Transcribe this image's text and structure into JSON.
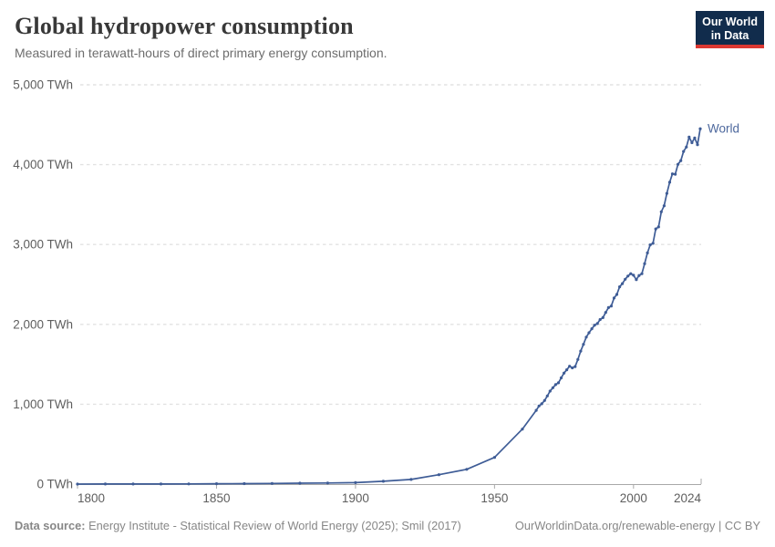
{
  "header": {
    "logo": {
      "line1": "Our World",
      "line2": "in Data",
      "bg": "#112c4c",
      "accent": "#dc3832"
    }
  },
  "chart_data": {
    "type": "line",
    "title": "Global hydropower consumption",
    "subtitle": "Measured in terawatt-hours of direct primary energy consumption.",
    "unit": "TWh",
    "xlabel": "",
    "ylabel": "TWh",
    "xlim": [
      1800,
      2024
    ],
    "ylim": [
      0,
      5000
    ],
    "grid": "horizontal-dashed",
    "legend_position": "end-of-line-label",
    "xticks": [
      {
        "value": 1800,
        "label": "1800"
      },
      {
        "value": 1850,
        "label": "1850"
      },
      {
        "value": 1900,
        "label": "1900"
      },
      {
        "value": 1950,
        "label": "1950"
      },
      {
        "value": 2000,
        "label": "2000"
      },
      {
        "value": 2024,
        "label": "2024"
      }
    ],
    "yticks": [
      {
        "value": 0,
        "label": "0 TWh"
      },
      {
        "value": 1000,
        "label": "1,000 TWh"
      },
      {
        "value": 2000,
        "label": "2,000 TWh"
      },
      {
        "value": 3000,
        "label": "3,000 TWh"
      },
      {
        "value": 4000,
        "label": "4,000 TWh"
      },
      {
        "value": 5000,
        "label": "5,000 TWh"
      }
    ],
    "series": [
      {
        "name": "World",
        "color": "#3e5c96",
        "label_color": "#4d689d",
        "points": [
          [
            1800,
            0.4
          ],
          [
            1810,
            0.7
          ],
          [
            1820,
            1.1
          ],
          [
            1830,
            1.7
          ],
          [
            1840,
            2.6
          ],
          [
            1850,
            4
          ],
          [
            1860,
            6
          ],
          [
            1870,
            8
          ],
          [
            1880,
            11
          ],
          [
            1890,
            14
          ],
          [
            1900,
            18
          ],
          [
            1910,
            35
          ],
          [
            1920,
            58
          ],
          [
            1930,
            118
          ],
          [
            1940,
            185
          ],
          [
            1950,
            334
          ],
          [
            1960,
            688
          ],
          [
            1965,
            923
          ],
          [
            1966,
            978
          ],
          [
            1967,
            1006
          ],
          [
            1968,
            1047
          ],
          [
            1969,
            1104
          ],
          [
            1970,
            1164
          ],
          [
            1971,
            1207
          ],
          [
            1972,
            1246
          ],
          [
            1973,
            1268
          ],
          [
            1974,
            1330
          ],
          [
            1975,
            1390
          ],
          [
            1976,
            1432
          ],
          [
            1977,
            1476
          ],
          [
            1978,
            1455
          ],
          [
            1979,
            1472
          ],
          [
            1980,
            1560
          ],
          [
            1981,
            1665
          ],
          [
            1982,
            1750
          ],
          [
            1983,
            1840
          ],
          [
            1984,
            1895
          ],
          [
            1985,
            1945
          ],
          [
            1986,
            1990
          ],
          [
            1987,
            2010
          ],
          [
            1988,
            2060
          ],
          [
            1989,
            2085
          ],
          [
            1990,
            2150
          ],
          [
            1991,
            2210
          ],
          [
            1992,
            2230
          ],
          [
            1993,
            2330
          ],
          [
            1994,
            2375
          ],
          [
            1995,
            2470
          ],
          [
            1996,
            2510
          ],
          [
            1997,
            2565
          ],
          [
            1998,
            2605
          ],
          [
            1999,
            2635
          ],
          [
            2000,
            2615
          ],
          [
            2001,
            2560
          ],
          [
            2002,
            2612
          ],
          [
            2003,
            2635
          ],
          [
            2004,
            2760
          ],
          [
            2005,
            2895
          ],
          [
            2006,
            2995
          ],
          [
            2007,
            3015
          ],
          [
            2008,
            3195
          ],
          [
            2009,
            3220
          ],
          [
            2010,
            3410
          ],
          [
            2011,
            3485
          ],
          [
            2012,
            3640
          ],
          [
            2013,
            3780
          ],
          [
            2014,
            3885
          ],
          [
            2015,
            3880
          ],
          [
            2016,
            4005
          ],
          [
            2017,
            4050
          ],
          [
            2018,
            4165
          ],
          [
            2019,
            4220
          ],
          [
            2020,
            4345
          ],
          [
            2021,
            4275
          ],
          [
            2022,
            4335
          ],
          [
            2023,
            4250
          ],
          [
            2024,
            4450
          ]
        ]
      }
    ]
  },
  "footer": {
    "source_label": "Data source:",
    "source_text": "Energy Institute - Statistical Review of World Energy (2025); Smil (2017)",
    "link_text": "OurWorldinData.org/renewable-energy | CC BY"
  }
}
